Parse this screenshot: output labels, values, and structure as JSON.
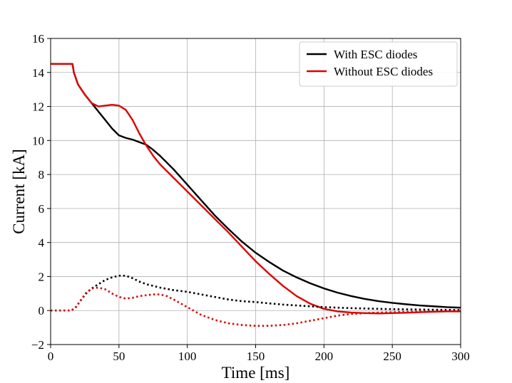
{
  "chart_data": {
    "type": "line",
    "title": "",
    "xlabel": "Time [ms]",
    "ylabel": "Current [kA]",
    "xlim": [
      0,
      300
    ],
    "ylim": [
      -2,
      16
    ],
    "xticks": [
      0,
      50,
      100,
      150,
      200,
      250,
      300
    ],
    "yticks": [
      -2,
      0,
      2,
      4,
      6,
      8,
      10,
      12,
      14,
      16
    ],
    "xtick_labels": [
      "0",
      "50",
      "100",
      "150",
      "200",
      "250",
      "300"
    ],
    "ytick_labels": [
      "−2",
      "0",
      "2",
      "4",
      "6",
      "8",
      "10",
      "12",
      "14",
      "16"
    ],
    "grid": true,
    "legend_position": "top-right",
    "series": [
      {
        "name": "With ESC diodes",
        "color": "#000000",
        "style": "solid",
        "x": [
          0,
          16,
          17,
          20,
          25,
          30,
          35,
          40,
          45,
          50,
          55,
          60,
          65,
          70,
          75,
          80,
          90,
          100,
          110,
          120,
          130,
          140,
          150,
          160,
          170,
          180,
          190,
          200,
          210,
          220,
          230,
          240,
          250,
          260,
          270,
          280,
          290,
          300
        ],
        "y": [
          14.5,
          14.5,
          14.0,
          13.3,
          12.7,
          12.2,
          11.7,
          11.2,
          10.7,
          10.3,
          10.15,
          10.05,
          9.9,
          9.75,
          9.45,
          9.1,
          8.3,
          7.4,
          6.5,
          5.6,
          4.8,
          4.05,
          3.4,
          2.85,
          2.35,
          1.95,
          1.6,
          1.3,
          1.05,
          0.85,
          0.68,
          0.55,
          0.45,
          0.37,
          0.3,
          0.25,
          0.2,
          0.17
        ]
      },
      {
        "name": "Without ESC diodes",
        "color": "#e00000",
        "style": "solid",
        "x": [
          0,
          16,
          17,
          20,
          25,
          30,
          35,
          40,
          45,
          50,
          55,
          60,
          65,
          70,
          75,
          80,
          90,
          100,
          110,
          120,
          130,
          140,
          150,
          160,
          170,
          180,
          190,
          200,
          210,
          220,
          230,
          240,
          250,
          260,
          270,
          280,
          290,
          300
        ],
        "y": [
          14.5,
          14.5,
          14.0,
          13.3,
          12.7,
          12.2,
          12.0,
          12.05,
          12.1,
          12.05,
          11.8,
          11.2,
          10.4,
          9.7,
          9.1,
          8.6,
          7.8,
          7.0,
          6.2,
          5.4,
          4.6,
          3.75,
          2.9,
          2.15,
          1.45,
          0.85,
          0.4,
          0.1,
          -0.05,
          -0.12,
          -0.15,
          -0.17,
          -0.15,
          -0.13,
          -0.1,
          -0.07,
          -0.05,
          -0.05
        ]
      },
      {
        "color": "#000000",
        "style": "dotted",
        "x": [
          0,
          15,
          18,
          22,
          26,
          30,
          35,
          40,
          45,
          50,
          55,
          60,
          65,
          70,
          75,
          80,
          90,
          100,
          110,
          120,
          130,
          140,
          150,
          160,
          170,
          180,
          190,
          200,
          210,
          220,
          230,
          240,
          250,
          260,
          270,
          280,
          290,
          300
        ],
        "y": [
          0,
          0,
          0.15,
          0.6,
          1.0,
          1.3,
          1.55,
          1.8,
          1.95,
          2.05,
          2.05,
          1.9,
          1.7,
          1.55,
          1.45,
          1.35,
          1.2,
          1.1,
          0.95,
          0.8,
          0.65,
          0.55,
          0.5,
          0.42,
          0.35,
          0.3,
          0.25,
          0.2,
          0.17,
          0.14,
          0.12,
          0.1,
          0.08,
          0.07,
          0.06,
          0.05,
          0.04,
          0.03
        ]
      },
      {
        "color": "#e00000",
        "style": "dotted",
        "x": [
          0,
          15,
          18,
          22,
          26,
          30,
          35,
          40,
          45,
          50,
          55,
          60,
          65,
          70,
          75,
          80,
          85,
          90,
          100,
          110,
          120,
          130,
          140,
          150,
          160,
          170,
          180,
          190,
          200,
          210,
          220,
          230,
          240,
          250,
          260,
          270,
          280,
          290,
          300
        ],
        "y": [
          0,
          0,
          0.15,
          0.6,
          1.05,
          1.3,
          1.35,
          1.25,
          1.0,
          0.8,
          0.7,
          0.75,
          0.85,
          0.9,
          0.95,
          0.95,
          0.85,
          0.65,
          0.2,
          -0.25,
          -0.55,
          -0.75,
          -0.85,
          -0.9,
          -0.9,
          -0.85,
          -0.75,
          -0.6,
          -0.45,
          -0.3,
          -0.2,
          -0.15,
          -0.12,
          -0.1,
          -0.08,
          -0.06,
          -0.05,
          -0.04,
          -0.03
        ]
      }
    ]
  }
}
